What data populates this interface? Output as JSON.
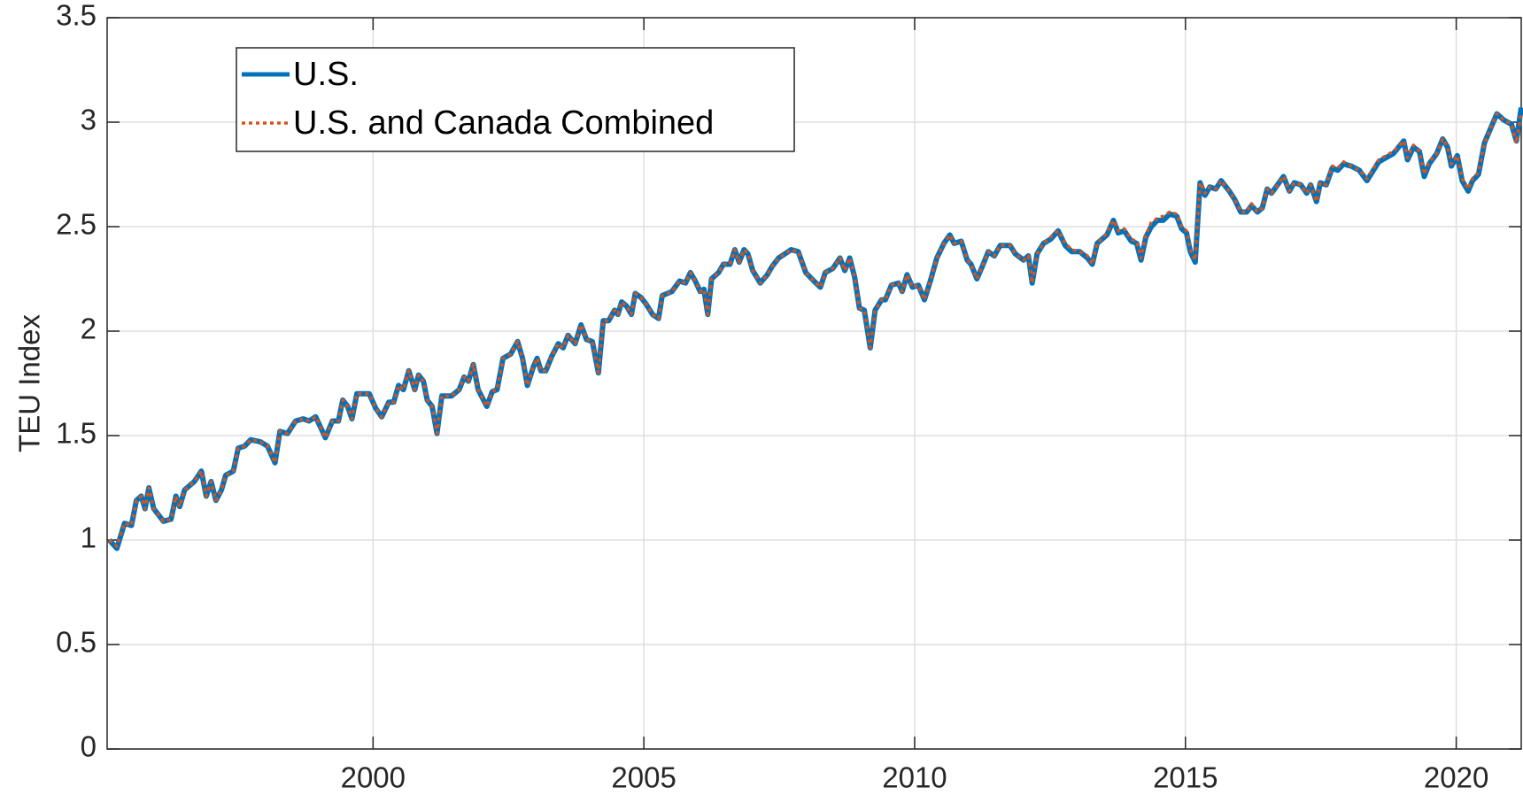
{
  "chart_data": {
    "type": "line",
    "ylabel": "TEU Index",
    "xlim": [
      1995.09,
      2021.2
    ],
    "ylim": [
      0,
      3.5
    ],
    "xticks": [
      2000,
      2005,
      2010,
      2015,
      2020
    ],
    "yticks": [
      0,
      0.5,
      1,
      1.5,
      2,
      2.5,
      3,
      3.5
    ],
    "grid": true,
    "legend": "upper left",
    "x": [
      1995.13,
      1995.27,
      1995.41,
      1995.54,
      1995.63,
      1995.72,
      1995.79,
      1995.86,
      1995.95,
      1996.13,
      1996.27,
      1996.36,
      1996.43,
      1996.52,
      1996.7,
      1996.83,
      1996.92,
      1997.01,
      1997.1,
      1997.2,
      1997.28,
      1997.42,
      1997.51,
      1997.63,
      1997.74,
      1997.92,
      1998.05,
      1998.19,
      1998.28,
      1998.42,
      1998.57,
      1998.71,
      1998.82,
      1998.94,
      1999.12,
      1999.25,
      1999.36,
      1999.44,
      1999.53,
      1999.61,
      1999.7,
      1999.93,
      2000.05,
      2000.16,
      2000.29,
      2000.38,
      2000.47,
      2000.56,
      2000.66,
      2000.77,
      2000.84,
      2000.93,
      2001.0,
      2001.09,
      2001.18,
      2001.27,
      2001.45,
      2001.59,
      2001.68,
      2001.76,
      2001.85,
      2001.94,
      2002.1,
      2002.2,
      2002.29,
      2002.4,
      2002.54,
      2002.67,
      2002.76,
      2002.85,
      2002.96,
      2003.03,
      2003.1,
      2003.19,
      2003.3,
      2003.42,
      2003.51,
      2003.6,
      2003.73,
      2003.84,
      2003.94,
      2004.05,
      2004.16,
      2004.25,
      2004.35,
      2004.46,
      2004.52,
      2004.59,
      2004.68,
      2004.77,
      2004.84,
      2004.95,
      2005.04,
      2005.16,
      2005.27,
      2005.34,
      2005.52,
      2005.66,
      2005.77,
      2005.86,
      2005.95,
      2006.04,
      2006.11,
      2006.18,
      2006.25,
      2006.38,
      2006.47,
      2006.59,
      2006.68,
      2006.76,
      2006.85,
      2006.92,
      2007.01,
      2007.15,
      2007.28,
      2007.37,
      2007.49,
      2007.72,
      2007.85,
      2007.99,
      2008.14,
      2008.26,
      2008.35,
      2008.49,
      2008.62,
      2008.71,
      2008.8,
      2008.89,
      2008.98,
      2009.07,
      2009.18,
      2009.27,
      2009.39,
      2009.46,
      2009.57,
      2009.7,
      2009.77,
      2009.86,
      2009.96,
      2010.07,
      2010.18,
      2010.29,
      2010.41,
      2010.54,
      2010.65,
      2010.73,
      2010.86,
      2010.97,
      2011.04,
      2011.15,
      2011.25,
      2011.36,
      2011.47,
      2011.58,
      2011.76,
      2011.86,
      2012.01,
      2012.1,
      2012.17,
      2012.26,
      2012.38,
      2012.51,
      2012.65,
      2012.78,
      2012.9,
      2013.05,
      2013.19,
      2013.28,
      2013.37,
      2013.55,
      2013.67,
      2013.76,
      2013.87,
      2014.0,
      2014.1,
      2014.18,
      2014.27,
      2014.37,
      2014.48,
      2014.59,
      2014.71,
      2014.84,
      2014.93,
      2015.02,
      2015.09,
      2015.18,
      2015.27,
      2015.36,
      2015.45,
      2015.56,
      2015.66,
      2015.81,
      2015.91,
      2016.02,
      2016.13,
      2016.22,
      2016.33,
      2016.42,
      2016.51,
      2016.59,
      2016.7,
      2016.81,
      2016.92,
      2017.01,
      2017.13,
      2017.24,
      2017.31,
      2017.42,
      2017.49,
      2017.6,
      2017.71,
      2017.81,
      2017.92,
      2018.06,
      2018.21,
      2018.35,
      2018.57,
      2018.84,
      2019.03,
      2019.1,
      2019.21,
      2019.32,
      2019.41,
      2019.5,
      2019.64,
      2019.75,
      2019.84,
      2019.91,
      2020.02,
      2020.11,
      2020.22,
      2020.3,
      2020.41,
      2020.52,
      2020.65,
      2020.75,
      2020.88,
      2021.02,
      2021.11,
      2021.2
    ],
    "series": [
      {
        "name": "U.S.",
        "color": "#0072bd",
        "style": "solid",
        "values": [
          1.0,
          0.96,
          1.08,
          1.07,
          1.19,
          1.21,
          1.15,
          1.25,
          1.15,
          1.09,
          1.1,
          1.21,
          1.16,
          1.24,
          1.28,
          1.33,
          1.21,
          1.28,
          1.19,
          1.24,
          1.31,
          1.33,
          1.44,
          1.45,
          1.48,
          1.47,
          1.45,
          1.37,
          1.52,
          1.51,
          1.57,
          1.58,
          1.57,
          1.59,
          1.49,
          1.57,
          1.57,
          1.67,
          1.64,
          1.58,
          1.7,
          1.7,
          1.63,
          1.59,
          1.66,
          1.66,
          1.74,
          1.72,
          1.81,
          1.72,
          1.79,
          1.76,
          1.67,
          1.64,
          1.51,
          1.69,
          1.69,
          1.72,
          1.78,
          1.76,
          1.84,
          1.72,
          1.64,
          1.71,
          1.72,
          1.87,
          1.89,
          1.95,
          1.87,
          1.74,
          1.83,
          1.87,
          1.81,
          1.81,
          1.88,
          1.94,
          1.92,
          1.98,
          1.94,
          2.03,
          1.96,
          1.95,
          1.8,
          2.05,
          2.05,
          2.1,
          2.08,
          2.14,
          2.12,
          2.08,
          2.18,
          2.16,
          2.13,
          2.08,
          2.06,
          2.17,
          2.19,
          2.24,
          2.23,
          2.28,
          2.24,
          2.19,
          2.2,
          2.08,
          2.25,
          2.28,
          2.32,
          2.32,
          2.39,
          2.33,
          2.39,
          2.37,
          2.29,
          2.23,
          2.27,
          2.31,
          2.35,
          2.39,
          2.38,
          2.28,
          2.24,
          2.21,
          2.28,
          2.3,
          2.35,
          2.29,
          2.35,
          2.26,
          2.11,
          2.1,
          1.92,
          2.1,
          2.15,
          2.15,
          2.22,
          2.23,
          2.19,
          2.27,
          2.21,
          2.22,
          2.15,
          2.24,
          2.35,
          2.42,
          2.46,
          2.42,
          2.43,
          2.34,
          2.32,
          2.25,
          2.31,
          2.38,
          2.36,
          2.41,
          2.41,
          2.37,
          2.34,
          2.36,
          2.23,
          2.37,
          2.42,
          2.44,
          2.48,
          2.41,
          2.38,
          2.38,
          2.35,
          2.32,
          2.42,
          2.46,
          2.53,
          2.47,
          2.48,
          2.43,
          2.42,
          2.34,
          2.45,
          2.5,
          2.53,
          2.53,
          2.56,
          2.55,
          2.49,
          2.47,
          2.38,
          2.33,
          2.71,
          2.65,
          2.69,
          2.68,
          2.72,
          2.67,
          2.63,
          2.57,
          2.57,
          2.6,
          2.57,
          2.59,
          2.68,
          2.66,
          2.7,
          2.74,
          2.67,
          2.71,
          2.7,
          2.66,
          2.7,
          2.62,
          2.71,
          2.7,
          2.78,
          2.77,
          2.8,
          2.79,
          2.77,
          2.72,
          2.81,
          2.85,
          2.91,
          2.82,
          2.88,
          2.86,
          2.74,
          2.8,
          2.85,
          2.92,
          2.88,
          2.79,
          2.84,
          2.72,
          2.67,
          2.72,
          2.75,
          2.9,
          2.98,
          3.04,
          3.01,
          2.99,
          2.91,
          3.07
        ]
      },
      {
        "name": "U.S. and Canada Combined",
        "color": "#d95319",
        "style": "dotted",
        "values": [
          1.0,
          0.97,
          1.08,
          1.07,
          1.19,
          1.21,
          1.15,
          1.25,
          1.15,
          1.09,
          1.1,
          1.21,
          1.16,
          1.24,
          1.28,
          1.33,
          1.21,
          1.28,
          1.19,
          1.24,
          1.31,
          1.33,
          1.44,
          1.45,
          1.48,
          1.47,
          1.45,
          1.37,
          1.52,
          1.51,
          1.57,
          1.58,
          1.57,
          1.59,
          1.49,
          1.57,
          1.57,
          1.67,
          1.64,
          1.58,
          1.7,
          1.7,
          1.63,
          1.59,
          1.66,
          1.66,
          1.74,
          1.72,
          1.81,
          1.72,
          1.79,
          1.76,
          1.67,
          1.64,
          1.51,
          1.69,
          1.69,
          1.72,
          1.78,
          1.76,
          1.84,
          1.72,
          1.64,
          1.71,
          1.72,
          1.87,
          1.89,
          1.95,
          1.87,
          1.74,
          1.83,
          1.87,
          1.81,
          1.81,
          1.88,
          1.94,
          1.92,
          1.98,
          1.94,
          2.03,
          1.96,
          1.95,
          1.8,
          2.05,
          2.05,
          2.1,
          2.08,
          2.14,
          2.12,
          2.08,
          2.18,
          2.16,
          2.13,
          2.08,
          2.06,
          2.17,
          2.19,
          2.24,
          2.23,
          2.28,
          2.24,
          2.19,
          2.2,
          2.08,
          2.25,
          2.28,
          2.32,
          2.32,
          2.39,
          2.33,
          2.39,
          2.37,
          2.29,
          2.23,
          2.27,
          2.31,
          2.35,
          2.39,
          2.38,
          2.28,
          2.24,
          2.21,
          2.28,
          2.3,
          2.35,
          2.29,
          2.35,
          2.26,
          2.11,
          2.1,
          1.92,
          2.1,
          2.15,
          2.15,
          2.22,
          2.23,
          2.19,
          2.27,
          2.21,
          2.22,
          2.15,
          2.24,
          2.35,
          2.42,
          2.46,
          2.42,
          2.43,
          2.34,
          2.32,
          2.25,
          2.31,
          2.38,
          2.36,
          2.41,
          2.41,
          2.37,
          2.34,
          2.36,
          2.23,
          2.37,
          2.42,
          2.45,
          2.48,
          2.42,
          2.39,
          2.38,
          2.36,
          2.32,
          2.42,
          2.47,
          2.53,
          2.48,
          2.49,
          2.44,
          2.43,
          2.35,
          2.46,
          2.52,
          2.54,
          2.55,
          2.57,
          2.56,
          2.5,
          2.48,
          2.39,
          2.34,
          2.71,
          2.66,
          2.69,
          2.68,
          2.72,
          2.67,
          2.63,
          2.57,
          2.57,
          2.61,
          2.57,
          2.59,
          2.68,
          2.66,
          2.7,
          2.74,
          2.67,
          2.71,
          2.7,
          2.66,
          2.7,
          2.62,
          2.71,
          2.7,
          2.79,
          2.78,
          2.81,
          2.79,
          2.77,
          2.73,
          2.82,
          2.86,
          2.91,
          2.83,
          2.89,
          2.86,
          2.75,
          2.81,
          2.85,
          2.92,
          2.88,
          2.8,
          2.84,
          2.73,
          2.68,
          2.73,
          2.76,
          2.9,
          2.98,
          3.04,
          3.01,
          2.99,
          2.9,
          3.05
        ]
      }
    ]
  }
}
